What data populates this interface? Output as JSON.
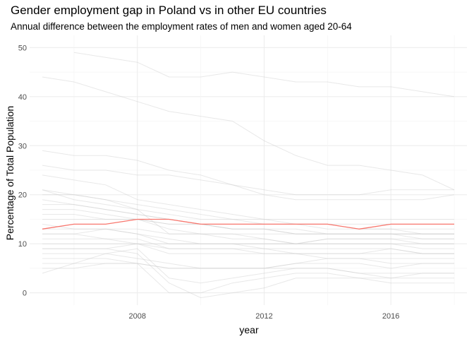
{
  "chart_data": {
    "type": "line",
    "title": "Gender employment gap in Poland vs in other EU countries",
    "subtitle": "Annual difference between the employment rates of men and women aged 20-64",
    "xlabel": "year",
    "ylabel": "Percentage of Total Population",
    "xlim": [
      2004.6,
      2018.4
    ],
    "ylim": [
      -2.5,
      52.5
    ],
    "x_ticks": [
      2008,
      2012,
      2016
    ],
    "x_tick_labels": [
      "2008",
      "2012",
      "2016"
    ],
    "y_ticks": [
      0,
      10,
      20,
      30,
      40,
      50
    ],
    "y_tick_labels": [
      "0",
      "10",
      "20",
      "30",
      "40",
      "50"
    ],
    "grid": true,
    "x": [
      2005,
      2006,
      2007,
      2008,
      2009,
      2010,
      2011,
      2012,
      2013,
      2014,
      2015,
      2016,
      2017,
      2018
    ],
    "highlight": {
      "color": "#f8766d",
      "values": [
        13,
        14,
        14,
        15,
        15,
        14,
        14,
        14,
        14,
        14,
        13,
        14,
        14,
        14
      ]
    },
    "background_color": "#cccccc",
    "background_series": [
      {
        "values": [
          null,
          49,
          48,
          47,
          44,
          44,
          45,
          44,
          43,
          43,
          42,
          42,
          41,
          40
        ]
      },
      {
        "values": [
          44,
          43,
          41,
          39,
          37,
          36,
          35,
          31,
          28,
          26,
          26,
          25,
          24,
          21
        ]
      },
      {
        "values": [
          29,
          28,
          28,
          27,
          25,
          24,
          22,
          21,
          20,
          20,
          20,
          21,
          21,
          21
        ]
      },
      {
        "values": [
          26,
          25,
          25,
          24,
          24,
          23,
          22,
          20,
          19,
          19,
          19,
          19,
          19,
          20
        ]
      },
      {
        "values": [
          24,
          23,
          22,
          19,
          18,
          17,
          16,
          15,
          15,
          15,
          15,
          15,
          15,
          15
        ]
      },
      {
        "values": [
          21,
          20,
          19,
          17,
          16,
          15,
          15,
          14,
          14,
          13,
          13,
          13,
          12,
          12
        ]
      },
      {
        "values": [
          21,
          19,
          18,
          17,
          12,
          12,
          11,
          11,
          10,
          11,
          11,
          11,
          10,
          10
        ]
      },
      {
        "values": [
          20,
          20,
          19,
          18,
          17,
          16,
          15,
          15,
          14,
          14,
          13,
          13,
          13,
          13
        ]
      },
      {
        "values": [
          19,
          18,
          17,
          16,
          15,
          14,
          13,
          13,
          12,
          12,
          12,
          12,
          12,
          12
        ]
      },
      {
        "values": [
          16,
          16,
          15,
          15,
          14,
          14,
          13,
          13,
          13,
          12,
          12,
          12,
          11,
          11
        ]
      },
      {
        "values": [
          15,
          15,
          15,
          15,
          14,
          14,
          14,
          14,
          14,
          14,
          14,
          14,
          14,
          14
        ]
      },
      {
        "values": [
          13,
          13,
          13,
          12,
          11,
          10,
          10,
          10,
          10,
          10,
          10,
          10,
          10,
          10
        ]
      },
      {
        "values": [
          12,
          12,
          13,
          12,
          10,
          10,
          10,
          10,
          10,
          10,
          10,
          10,
          9,
          9
        ]
      },
      {
        "values": [
          11,
          11,
          11,
          10,
          9,
          9,
          9,
          8,
          8,
          8,
          8,
          8,
          8,
          8
        ]
      },
      {
        "values": [
          10,
          10,
          10,
          10,
          8,
          8,
          8,
          8,
          8,
          8,
          8,
          9,
          8,
          8
        ]
      },
      {
        "values": [
          9,
          9,
          9,
          10,
          10,
          10,
          10,
          9,
          8,
          7,
          7,
          6,
          6,
          6
        ]
      },
      {
        "values": [
          8,
          8,
          8,
          7,
          6,
          5,
          5,
          5,
          6,
          7,
          7,
          7,
          7,
          7
        ]
      },
      {
        "values": [
          7,
          7,
          7,
          6,
          5,
          5,
          5,
          5,
          5,
          5,
          4,
          4,
          4,
          4
        ]
      },
      {
        "values": [
          6,
          6,
          6,
          6,
          5,
          5,
          5,
          5,
          6,
          6,
          6,
          5,
          6,
          6
        ]
      },
      {
        "values": [
          4,
          6,
          8,
          9,
          3,
          2,
          3,
          4,
          5,
          5,
          4,
          3,
          4,
          4
        ]
      },
      {
        "values": [
          5,
          5,
          6,
          6,
          0,
          0,
          2,
          3,
          4,
          4,
          3,
          2,
          2,
          2
        ]
      },
      {
        "values": [
          9,
          9,
          9,
          8,
          2,
          -1,
          0,
          1,
          3,
          3,
          3,
          3,
          3,
          3
        ]
      },
      {
        "values": [
          12,
          12,
          11,
          11,
          9,
          9,
          9,
          9,
          9,
          9,
          9,
          9,
          8,
          8
        ]
      },
      {
        "values": [
          17,
          17,
          16,
          15,
          13,
          12,
          12,
          11,
          10,
          11,
          11,
          11,
          11,
          11
        ]
      },
      {
        "values": [
          18,
          18,
          17,
          16,
          15,
          14,
          13,
          13,
          12,
          12,
          12,
          12,
          12,
          12
        ]
      },
      {
        "values": [
          14,
          13,
          13,
          13,
          12,
          12,
          12,
          12,
          12,
          12,
          12,
          12,
          12,
          12
        ]
      }
    ]
  }
}
